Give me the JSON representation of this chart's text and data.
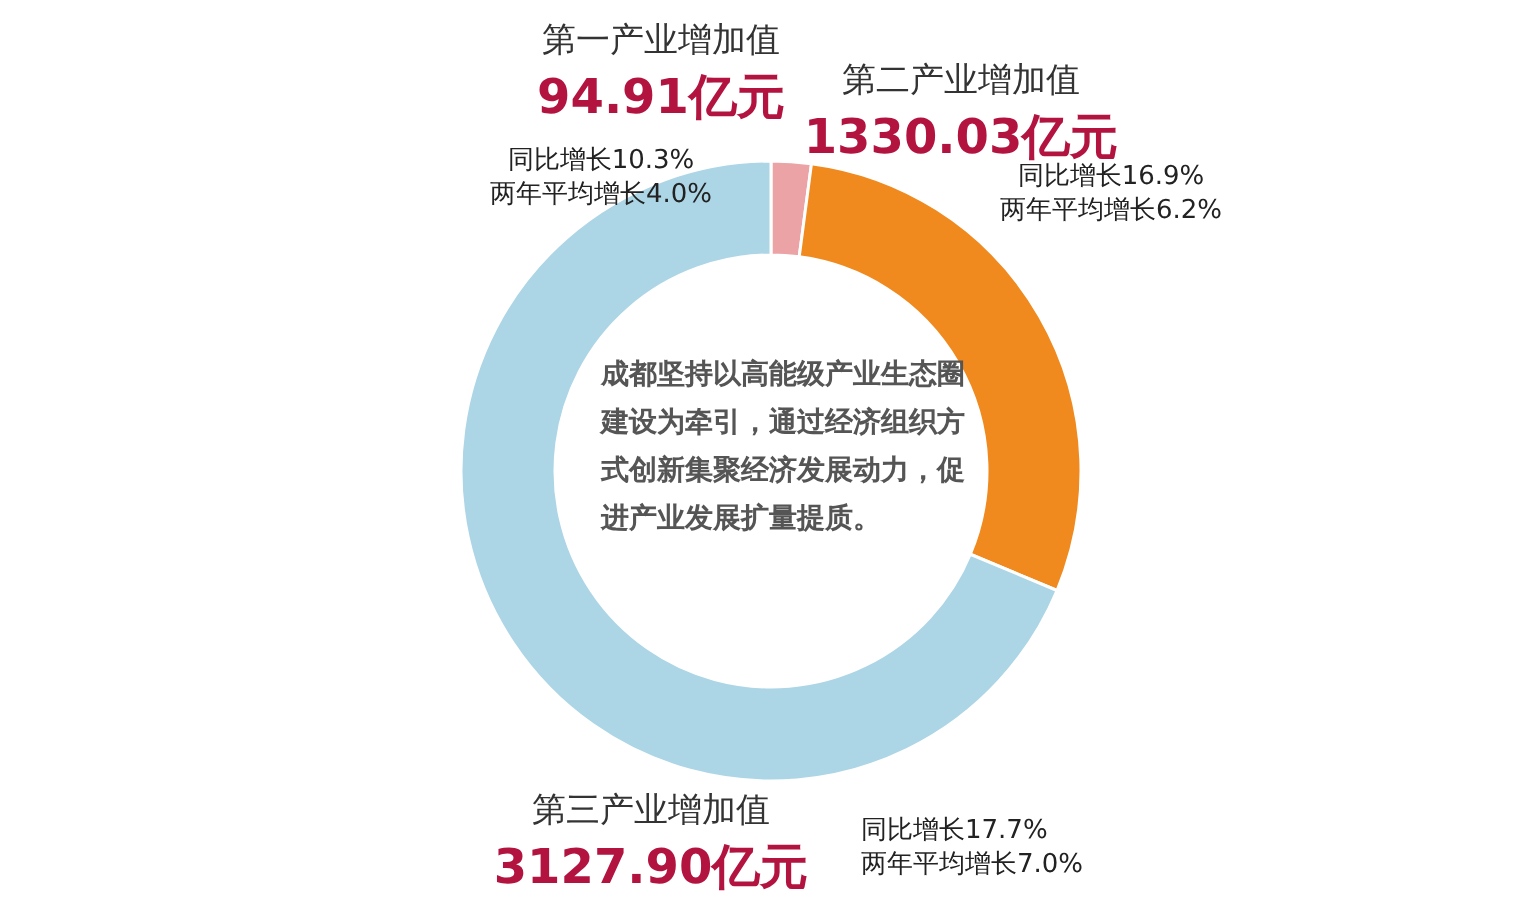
{
  "chart_data": {
    "type": "donut",
    "categories": [
      "第一产业增加值",
      "第二产业增加值",
      "第三产业增加值"
    ],
    "values": [
      94.91,
      1330.03,
      3127.9
    ],
    "colors": [
      "#eba3a6",
      "#f0891e",
      "#acd5e6"
    ],
    "value_labels": [
      "94.91亿元",
      "1330.03亿元",
      "3127.90亿元"
    ],
    "annotations": [
      "成都坚持以高能级产业生态圈建设为牵引，通过经济组织方式创新集聚经济发展动力，促进产业发展扩量提质。",
      "同比增长10.3%",
      "两年平均增长4.0%",
      "同比增长16.9%",
      "两年平均增长6.2%",
      "同比增长17.7%",
      "两年平均增长7.0%"
    ]
  }
}
